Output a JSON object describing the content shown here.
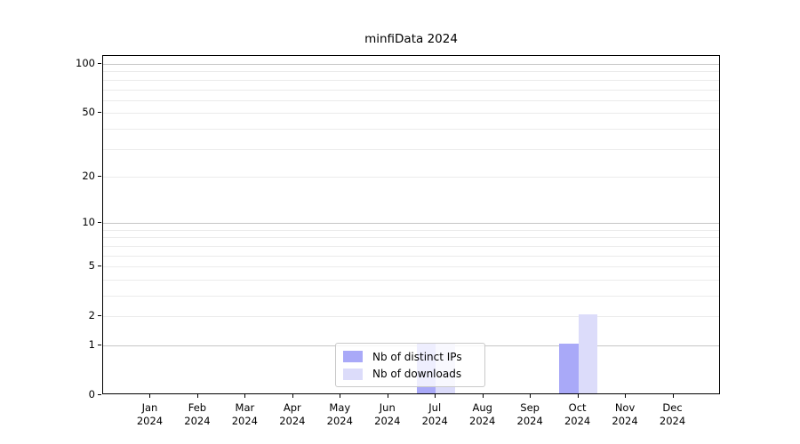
{
  "chart_data": {
    "type": "bar",
    "title": "minfiData 2024",
    "categories": [
      "Jan",
      "Feb",
      "Mar",
      "Apr",
      "May",
      "Jun",
      "Jul",
      "Aug",
      "Sep",
      "Oct",
      "Nov",
      "Dec"
    ],
    "category_year": "2024",
    "series": [
      {
        "name": "Nb of distinct IPs",
        "color": "#a9a9f8",
        "values": [
          0,
          0,
          0,
          0,
          0,
          0,
          1,
          0,
          0,
          1,
          0,
          0
        ]
      },
      {
        "name": "Nb of downloads",
        "color": "#dcdcfa",
        "values": [
          0,
          0,
          0,
          0,
          0,
          0,
          1,
          0,
          0,
          2,
          0,
          0
        ]
      }
    ],
    "y_axis": {
      "scale": "log10(value+1)",
      "ylim": [
        0,
        112
      ],
      "tick_values": [
        100,
        50,
        20,
        10,
        5,
        2,
        1,
        0
      ],
      "tick_labels": [
        "100",
        "50",
        "20",
        "10",
        "5",
        "2",
        "1",
        "0"
      ],
      "major_grid_values": [
        100,
        10,
        1
      ],
      "minor_grid_values": [
        90,
        80,
        70,
        60,
        50,
        40,
        30,
        20,
        9,
        8,
        7,
        6,
        5,
        4,
        3,
        2
      ],
      "major_grid_color": "#c6c6c6",
      "minor_grid_color": "#ebebeb"
    },
    "x_axis": {
      "tick_label_line1": [
        "Jan",
        "Feb",
        "Mar",
        "Apr",
        "May",
        "Jun",
        "Jul",
        "Aug",
        "Sep",
        "Oct",
        "Nov",
        "Dec"
      ],
      "tick_label_line2": "2024"
    },
    "legend": {
      "position": "lower center",
      "entries": [
        "Nb of distinct IPs",
        "Nb of downloads"
      ]
    },
    "style": {
      "axis_color": "#000000",
      "background": "#ffffff",
      "text_color": "#000000"
    }
  }
}
